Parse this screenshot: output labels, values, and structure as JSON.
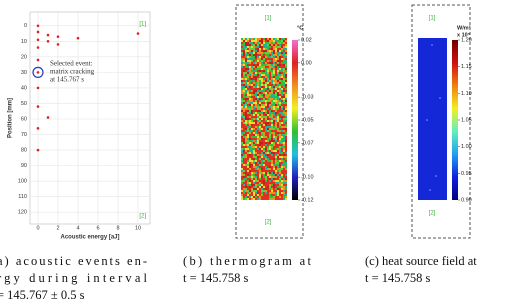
{
  "chart_data": [
    {
      "type": "scatter",
      "x_label": "Acoustic energy [aJ]",
      "y_label": "Position [mm]",
      "x": [
        0,
        0,
        0,
        0,
        0,
        0,
        0,
        0,
        0,
        0,
        1,
        1,
        2,
        2,
        4,
        10,
        1
      ],
      "y": [
        0,
        4,
        9,
        14,
        22,
        30,
        40,
        52,
        66,
        80,
        6,
        10,
        7,
        12,
        8,
        5,
        59
      ],
      "color": "#e02020",
      "xlim": [
        -0.8,
        11
      ],
      "ylim": [
        -5,
        125
      ],
      "y_inverted": true,
      "xticks": [
        0,
        2,
        4,
        6,
        8,
        10
      ],
      "yticks": [
        0,
        10,
        20,
        30,
        40,
        50,
        60,
        70,
        80,
        90,
        100,
        110,
        120
      ],
      "grid": true,
      "highlight": {
        "x": 0,
        "y": 30,
        "color": "#2040c0"
      },
      "annotation": [
        "Selected event:",
        "matrix cracking",
        "at 145.767 s"
      ],
      "end_labels": [
        "[1]",
        "[2]"
      ],
      "end_label_color": "#40b040"
    }
  ],
  "thermogram": {
    "end_labels": [
      "[1]",
      "[2]"
    ],
    "unit": "°C",
    "clim": [
      -0.12,
      0.02
    ],
    "ticks": [
      0.02,
      {
        "value": 0,
        "label": "0.00"
      },
      -0.03,
      -0.05,
      -0.07,
      {
        "value": -0.1,
        "label": "-0.10"
      },
      -0.12
    ],
    "colormap": [
      "#000000",
      "#2020c0",
      "#20c0e0",
      "#30c030",
      "#f0f020",
      "#f09020",
      "#e02020",
      "#f070d0"
    ]
  },
  "heat_source": {
    "end_labels": [
      "[1]",
      "[2]"
    ],
    "unit": "W/m³",
    "multiplier": "x 10⁵",
    "clim": [
      0.9,
      1.2
    ],
    "ticks": [
      {
        "value": 1.2,
        "label": "1.20"
      },
      1.15,
      {
        "value": 1.1,
        "label": "1.10"
      },
      1.05,
      {
        "value": 1.0,
        "label": "1.00"
      },
      0.95,
      {
        "value": 0.9,
        "label": "0.90"
      }
    ],
    "colormap": [
      "#000080",
      "#1020e0",
      "#20a0f0",
      "#60f0c0",
      "#f0f020",
      "#f08010",
      "#d01010",
      "#700000"
    ]
  },
  "captions": [
    [
      "a)   acoustic   events   en-",
      "rgy   during   interval",
      "= 145.767 ± 0.5 s"
    ],
    [
      "(b)   thermogram   at",
      "t = 145.758 s"
    ],
    [
      "(c) heat source field at",
      "t = 145.758 s"
    ]
  ]
}
